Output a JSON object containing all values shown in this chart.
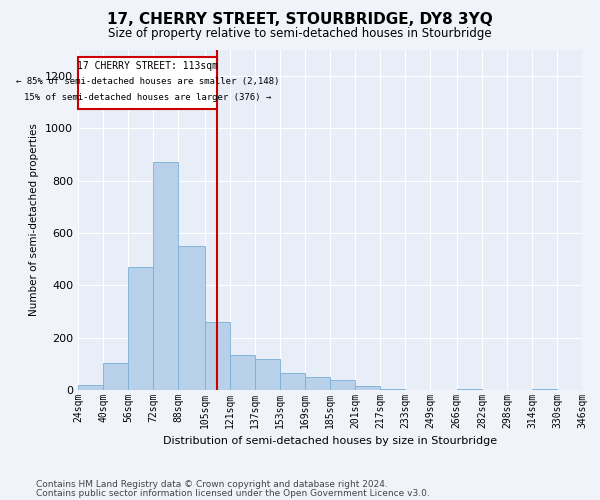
{
  "title": "17, CHERRY STREET, STOURBRIDGE, DY8 3YQ",
  "subtitle": "Size of property relative to semi-detached houses in Stourbridge",
  "xlabel": "Distribution of semi-detached houses by size in Stourbridge",
  "ylabel": "Number of semi-detached properties",
  "footer1": "Contains HM Land Registry data © Crown copyright and database right 2024.",
  "footer2": "Contains public sector information licensed under the Open Government Licence v3.0.",
  "annotation_title": "17 CHERRY STREET: 113sqm",
  "annotation_line1": "← 85% of semi-detached houses are smaller (2,148)",
  "annotation_line2": "15% of semi-detached houses are larger (376) →",
  "bin_edges": [
    24,
    40,
    56,
    72,
    88,
    105,
    121,
    137,
    153,
    169,
    185,
    201,
    217,
    233,
    249,
    266,
    282,
    298,
    314,
    330,
    346
  ],
  "bin_labels": [
    "24sqm",
    "40sqm",
    "56sqm",
    "72sqm",
    "88sqm",
    "105sqm",
    "121sqm",
    "137sqm",
    "153sqm",
    "169sqm",
    "185sqm",
    "201sqm",
    "217sqm",
    "233sqm",
    "249sqm",
    "266sqm",
    "282sqm",
    "298sqm",
    "314sqm",
    "330sqm",
    "346sqm"
  ],
  "counts": [
    20,
    105,
    470,
    870,
    550,
    260,
    135,
    120,
    65,
    50,
    40,
    15,
    5,
    0,
    0,
    5,
    0,
    0,
    5,
    0
  ],
  "bar_color": "#b8d0ea",
  "bar_edge_color": "#7aafd4",
  "vline_color": "#cc0000",
  "vline_x": 113,
  "annotation_box_color": "#cc0000",
  "ylim_max": 1300,
  "yticks": [
    0,
    200,
    400,
    600,
    800,
    1000,
    1200
  ],
  "bg_color": "#e8eef8",
  "grid_color": "#ffffff",
  "fig_bg_color": "#f0f4fa"
}
